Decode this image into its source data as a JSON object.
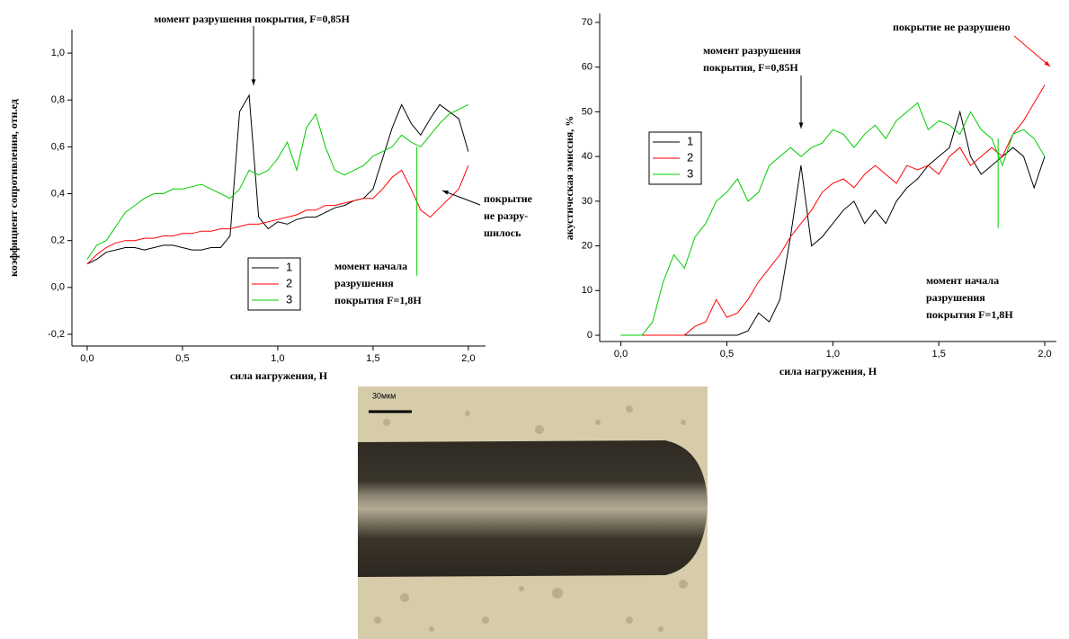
{
  "chart_data": [
    {
      "type": "line",
      "x_label": "сила нагружения, Н",
      "y_label": "коэффициент сопротивления, отн.ед",
      "x": [
        0,
        0.05,
        0.1,
        0.15,
        0.2,
        0.25,
        0.3,
        0.35,
        0.4,
        0.45,
        0.5,
        0.55,
        0.6,
        0.65,
        0.7,
        0.75,
        0.8,
        0.85,
        0.9,
        0.95,
        1.0,
        1.05,
        1.1,
        1.15,
        1.2,
        1.25,
        1.3,
        1.35,
        1.4,
        1.45,
        1.5,
        1.55,
        1.6,
        1.65,
        1.7,
        1.75,
        1.8,
        1.85,
        1.9,
        1.95,
        2.0
      ],
      "series": [
        {
          "name": "1",
          "color": "#000000",
          "values": [
            0.1,
            0.12,
            0.15,
            0.16,
            0.17,
            0.17,
            0.16,
            0.17,
            0.18,
            0.18,
            0.17,
            0.16,
            0.16,
            0.17,
            0.17,
            0.22,
            0.75,
            0.82,
            0.3,
            0.25,
            0.28,
            0.27,
            0.29,
            0.3,
            0.3,
            0.32,
            0.34,
            0.35,
            0.37,
            0.38,
            0.42,
            0.55,
            0.68,
            0.78,
            0.7,
            0.65,
            0.72,
            0.78,
            0.75,
            0.72,
            0.58
          ]
        },
        {
          "name": "2",
          "color": "#ff0000",
          "values": [
            0.1,
            0.14,
            0.17,
            0.19,
            0.2,
            0.2,
            0.21,
            0.21,
            0.22,
            0.22,
            0.23,
            0.23,
            0.24,
            0.24,
            0.25,
            0.25,
            0.26,
            0.27,
            0.27,
            0.28,
            0.29,
            0.3,
            0.31,
            0.33,
            0.33,
            0.35,
            0.35,
            0.36,
            0.37,
            0.38,
            0.38,
            0.42,
            0.47,
            0.5,
            0.42,
            0.33,
            0.3,
            0.34,
            0.38,
            0.42,
            0.52
          ]
        },
        {
          "name": "3",
          "color": "#00cc00",
          "values": [
            0.12,
            0.18,
            0.2,
            0.26,
            0.32,
            0.35,
            0.38,
            0.4,
            0.4,
            0.42,
            0.42,
            0.43,
            0.44,
            0.42,
            0.4,
            0.38,
            0.42,
            0.5,
            0.48,
            0.5,
            0.55,
            0.62,
            0.5,
            0.68,
            0.74,
            0.6,
            0.5,
            0.48,
            0.5,
            0.52,
            0.56,
            0.58,
            0.6,
            0.65,
            0.62,
            0.6,
            0.65,
            0.7,
            0.74,
            0.76,
            0.78
          ]
        }
      ],
      "xlim": [
        -0.08,
        2.09
      ],
      "ylim": [
        -0.25,
        1.1
      ],
      "xticks": [
        {
          "value": 0,
          "label": "0,0"
        },
        {
          "value": 0.5,
          "label": "0,5"
        },
        {
          "value": 1,
          "label": "1,0"
        },
        {
          "value": 1.5,
          "label": "1,5"
        },
        {
          "value": 2,
          "label": "2,0"
        }
      ],
      "yticks": [
        {
          "value": -0.2,
          "label": "-0,2"
        },
        {
          "value": 0,
          "label": "0,0"
        },
        {
          "value": 0.2,
          "label": "0,2"
        },
        {
          "value": 0.4,
          "label": "0,4"
        },
        {
          "value": 0.6,
          "label": "0,6"
        },
        {
          "value": 0.8,
          "label": "0,8"
        },
        {
          "value": 1,
          "label": "1,0"
        }
      ],
      "annotations": [
        {
          "lines": [
            "момент разрушения покрытия, F=0,85Н"
          ]
        },
        {
          "lines": [
            "покрытие",
            "не разру-",
            "шилось"
          ]
        },
        {
          "lines": [
            "момент начала",
            "разрушения",
            "покрытия F=1,8Н"
          ]
        }
      ]
    },
    {
      "type": "line",
      "x_label": "сила нагружения, Н",
      "y_label": "акустическая эмиссия, %",
      "x": [
        0,
        0.05,
        0.1,
        0.15,
        0.2,
        0.25,
        0.3,
        0.35,
        0.4,
        0.45,
        0.5,
        0.55,
        0.6,
        0.65,
        0.7,
        0.75,
        0.8,
        0.85,
        0.9,
        0.95,
        1.0,
        1.05,
        1.1,
        1.15,
        1.2,
        1.25,
        1.3,
        1.35,
        1.4,
        1.45,
        1.5,
        1.55,
        1.6,
        1.65,
        1.7,
        1.75,
        1.8,
        1.85,
        1.9,
        1.95,
        2.0
      ],
      "series": [
        {
          "name": "1",
          "color": "#000000",
          "values": [
            0,
            0,
            0,
            0,
            0,
            0,
            0,
            0,
            0,
            0,
            0,
            0,
            1,
            5,
            3,
            8,
            22,
            38,
            20,
            22,
            25,
            28,
            30,
            25,
            28,
            25,
            30,
            33,
            35,
            38,
            40,
            42,
            50,
            40,
            36,
            38,
            40,
            42,
            40,
            33,
            40
          ]
        },
        {
          "name": "2",
          "color": "#ff0000",
          "values": [
            0,
            0,
            0,
            0,
            0,
            0,
            0,
            2,
            3,
            8,
            4,
            5,
            8,
            12,
            15,
            18,
            22,
            25,
            28,
            32,
            34,
            35,
            33,
            36,
            38,
            36,
            34,
            38,
            37,
            38,
            36,
            40,
            42,
            38,
            40,
            42,
            40,
            45,
            48,
            52,
            56
          ]
        },
        {
          "name": "3",
          "color": "#00cc00",
          "values": [
            0,
            0,
            0,
            3,
            12,
            18,
            15,
            22,
            25,
            30,
            32,
            35,
            30,
            32,
            38,
            40,
            42,
            40,
            42,
            43,
            46,
            45,
            42,
            45,
            47,
            44,
            48,
            50,
            52,
            46,
            48,
            47,
            45,
            50,
            46,
            44,
            38,
            45,
            46,
            44,
            40
          ]
        }
      ],
      "xlim": [
        -0.1,
        2.055
      ],
      "ylim": [
        -1.4,
        72
      ],
      "xticks": [
        {
          "value": 0,
          "label": "0,0"
        },
        {
          "value": 0.5,
          "label": "0,5"
        },
        {
          "value": 1,
          "label": "1,0"
        },
        {
          "value": 1.5,
          "label": "1,5"
        },
        {
          "value": 2,
          "label": "2,0"
        }
      ],
      "yticks": [
        0,
        10,
        20,
        30,
        40,
        50,
        60,
        70
      ],
      "annotations": [
        {
          "lines": [
            "момент разрушения",
            "покрытия, F=0,85Н"
          ]
        },
        {
          "lines": [
            "покрытие не разрушено"
          ]
        },
        {
          "lines": [
            "момент начала",
            "разрушения",
            "покрытия F=1,8Н"
          ]
        }
      ]
    }
  ],
  "image": {
    "scale_label": "30мкм"
  }
}
